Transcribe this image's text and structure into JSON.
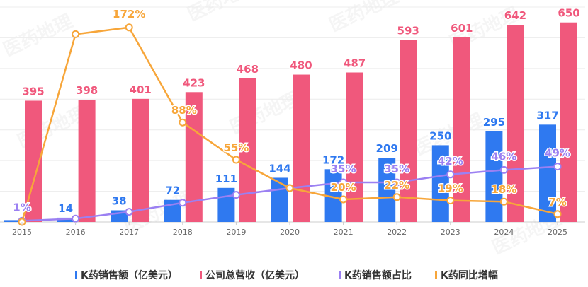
{
  "chart_data": {
    "type": "bar",
    "title": "",
    "categories": [
      "2015",
      "2016",
      "2017",
      "2018",
      "2019",
      "2020",
      "2021",
      "2022",
      "2023",
      "2024",
      "2025"
    ],
    "series": [
      {
        "name": "K药销售额（亿美元）",
        "kind": "bar",
        "axis": "left",
        "values": [
          6,
          14,
          38,
          72,
          111,
          144,
          172,
          209,
          250,
          295,
          317
        ],
        "labels": [
          "",
          "14",
          "38",
          "72",
          "111",
          "144",
          "172",
          "209",
          "250",
          "295",
          "317"
        ]
      },
      {
        "name": "公司总营收（亿美元）",
        "kind": "bar",
        "axis": "left",
        "values": [
          395,
          398,
          401,
          423,
          468,
          480,
          487,
          593,
          601,
          642,
          650
        ],
        "labels": [
          "395",
          "398",
          "401",
          "423",
          "468",
          "480",
          "487",
          "593",
          "601",
          "642",
          "650"
        ]
      },
      {
        "name": "K药销售额占比",
        "kind": "line",
        "axis": "right",
        "values": [
          1,
          3,
          9,
          17,
          24,
          30,
          35,
          35,
          42,
          46,
          49
        ],
        "labels": [
          "1%",
          "",
          "",
          "",
          "",
          "",
          "35%",
          "35%",
          "42%",
          "46%",
          "49%"
        ]
      },
      {
        "name": "K药同比增幅",
        "kind": "line",
        "axis": "right",
        "values": [
          0,
          166,
          172,
          88,
          55,
          30,
          20,
          22,
          19,
          18,
          7
        ],
        "labels": [
          "",
          "",
          "172%",
          "88%",
          "55%",
          "",
          "20%",
          "22%",
          "19%",
          "18%",
          "7%"
        ]
      }
    ],
    "ylim_left": [
      0,
      700
    ],
    "ylim_right": [
      0,
      190
    ],
    "grid": true,
    "legend_position": "bottom",
    "colors": {
      "k_sales": "#2f79f0",
      "revenue": "#f0587c",
      "share_line": "#9b80f2",
      "growth_line": "#f7a63a",
      "grid": "#ececec",
      "axis": "#cccccc"
    }
  },
  "watermark": "医药地理"
}
